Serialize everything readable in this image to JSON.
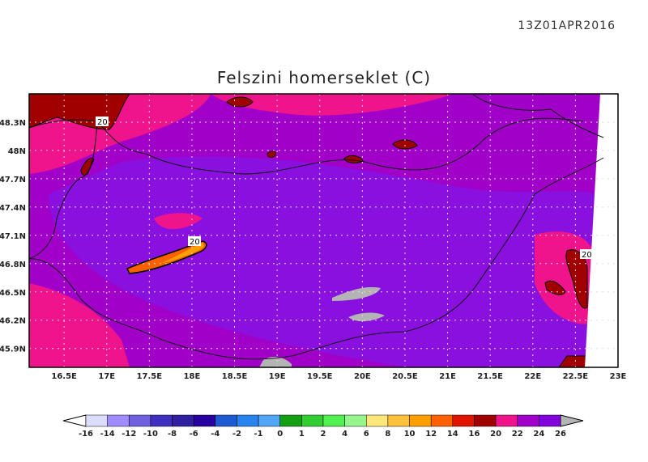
{
  "timestamp": "13Z01APR2016",
  "title": "Felszini homerseklet (C)",
  "map": {
    "lon_ticks": [
      "16.5E",
      "17E",
      "17.5E",
      "18E",
      "18.5E",
      "19E",
      "19.5E",
      "20E",
      "20.5E",
      "21E",
      "21.5E",
      "22E",
      "22.5E",
      "23E"
    ],
    "lon_values": [
      16.5,
      17,
      17.5,
      18,
      18.5,
      19,
      19.5,
      20,
      20.5,
      21,
      21.5,
      22,
      22.5,
      23
    ],
    "lat_ticks": [
      "48.3N",
      "48N",
      "47.7N",
      "47.4N",
      "47.1N",
      "46.8N",
      "46.5N",
      "46.2N",
      "45.9N"
    ],
    "lat_values": [
      48.3,
      48,
      47.7,
      47.4,
      47.1,
      46.8,
      46.5,
      46.2,
      45.9
    ],
    "lon_range": [
      16.09,
      23.0
    ],
    "lat_range": [
      45.7,
      48.6
    ],
    "contour_labels": [
      "20",
      "20",
      "20"
    ],
    "grid": true,
    "colors": {
      "background": "#8a10e0",
      "band_22_24": "#a000c8",
      "band_20_22": "#f0148c",
      "band_16_20": "#a00000",
      "band_12_14": "#ff6000",
      "band_10_12": "#ffa000",
      "missing": "#b4b4b4"
    }
  },
  "colorbar": {
    "labels": [
      "-16",
      "-14",
      "-12",
      "-10",
      "-8",
      "-6",
      "-4",
      "-2",
      "-1",
      "0",
      "1",
      "2",
      "4",
      "6",
      "8",
      "10",
      "12",
      "14",
      "16",
      "20",
      "22",
      "24",
      "26"
    ],
    "colors": [
      "#dcdcff",
      "#a08cff",
      "#7060e0",
      "#4030c0",
      "#3020a0",
      "#2800a0",
      "#1e5ad2",
      "#2882f0",
      "#50a5f5",
      "#14a014",
      "#32cd32",
      "#50f050",
      "#96f58c",
      "#ffe678",
      "#ffc03c",
      "#ffa000",
      "#ff6000",
      "#e11400",
      "#a00000",
      "#f0148c",
      "#a000c8",
      "#8200dc"
    ],
    "low_color": "#ffffff",
    "high_color": "#b4b4b4"
  }
}
